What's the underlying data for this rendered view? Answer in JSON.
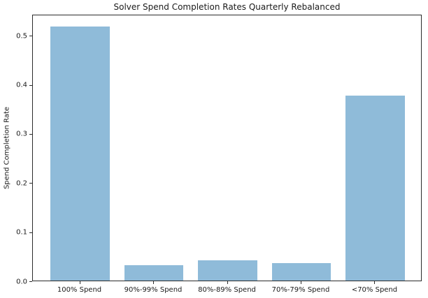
{
  "chart_data": {
    "type": "bar",
    "title": "Solver Spend Completion Rates Quarterly Rebalanced",
    "xlabel": "",
    "ylabel": "Spend Completion Rate",
    "categories": [
      "100% Spend",
      "90%-99% Spend",
      "80%-89% Spend",
      "70%-79% Spend",
      "<70% Spend"
    ],
    "values": [
      0.517,
      0.031,
      0.041,
      0.036,
      0.376
    ],
    "yticks": [
      0.0,
      0.1,
      0.2,
      0.3,
      0.4,
      0.5
    ],
    "ylim": [
      0,
      0.543
    ],
    "xlim": [
      -0.64,
      4.64
    ],
    "bar_width": 0.8,
    "bar_color": "#8fbbd9",
    "spine_color": "#2b2b2b",
    "text_color": "#1a1a1a",
    "grid": false,
    "legend": null
  }
}
